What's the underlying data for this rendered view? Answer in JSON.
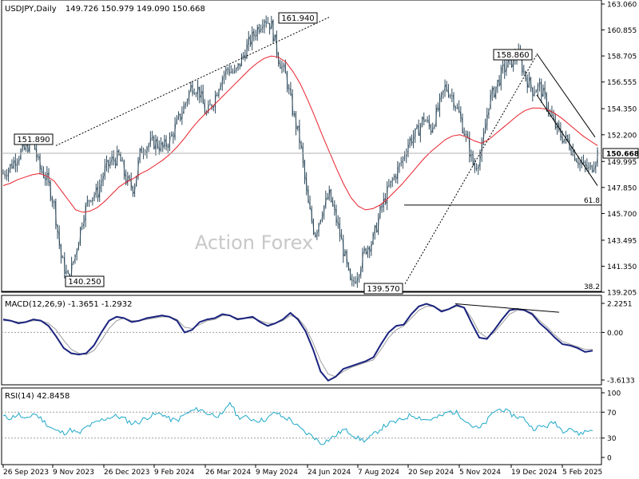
{
  "header": {
    "symbol": "USDJPY,Daily",
    "ohlc": "149.726 150.979 149.090 150.668"
  },
  "watermark": "Action Forex",
  "colors": {
    "candle": "#2e4a5c",
    "ma": "#e8202a",
    "macd": "#1a237e",
    "signal": "#9e9e9e",
    "rsi": "#1fa8c9",
    "axis": "#000000"
  },
  "chart_data": [
    {
      "type": "candlestick",
      "title": "USDJPY,Daily",
      "ylim": [
        139.205,
        163.06
      ],
      "ytick_labels": [
        "163.060",
        "160.855",
        "158.705",
        "156.555",
        "154.350",
        "152.200",
        "149.995",
        "147.850",
        "145.700",
        "143.495",
        "141.350",
        "139.205"
      ],
      "ytick_values": [
        163.06,
        160.855,
        158.705,
        156.555,
        154.35,
        152.2,
        149.995,
        147.85,
        145.7,
        143.495,
        141.35,
        139.205
      ],
      "current_price": "150.668",
      "xtick_labels": [
        "26 Sep 2023",
        "9 Nov 2023",
        "26 Dec 2023",
        "9 Feb 2024",
        "26 Mar 2024",
        "9 May 2024",
        "24 Jun 2024",
        "7 Aug 2024",
        "20 Sep 2024",
        "5 Nov 2024",
        "19 Dec 2024",
        "5 Feb 2025"
      ],
      "close_path": [
        149.0,
        149.6,
        150.5,
        151.0,
        151.89,
        149.5,
        148.6,
        146.5,
        142.0,
        140.25,
        142.5,
        145.5,
        147.2,
        147.4,
        149.3,
        150.1,
        150.4,
        148.4,
        147.8,
        151.0,
        151.4,
        151.6,
        151.1,
        151.8,
        153.2,
        154.6,
        156.3,
        155.9,
        153.8,
        155.0,
        156.8,
        157.7,
        157.2,
        158.6,
        159.9,
        160.9,
        161.94,
        161.2,
        158.5,
        157.0,
        154.0,
        151.5,
        146.6,
        144.0,
        146.0,
        147.2,
        145.1,
        142.5,
        139.57,
        141.0,
        142.8,
        143.5,
        145.8,
        147.5,
        148.8,
        150.0,
        151.7,
        152.3,
        153.6,
        152.7,
        154.3,
        156.2,
        155.4,
        153.7,
        151.7,
        149.4,
        150.8,
        154.9,
        156.2,
        157.6,
        158.2,
        158.86,
        157.1,
        155.9,
        156.2,
        154.8,
        153.1,
        152.1,
        151.6,
        150.4,
        149.6,
        149.3,
        150.67
      ],
      "ma": [
        148.0,
        148.2,
        148.5,
        148.7,
        148.9,
        149.0,
        148.8,
        148.4,
        147.6,
        146.8,
        146.0,
        145.8,
        145.9,
        146.2,
        146.7,
        147.3,
        147.9,
        148.3,
        148.6,
        149.0,
        149.3,
        149.7,
        150.1,
        150.6,
        151.2,
        151.9,
        152.7,
        153.4,
        154.0,
        154.6,
        155.2,
        155.8,
        156.4,
        157.0,
        157.6,
        158.1,
        158.5,
        158.7,
        158.6,
        158.2,
        157.4,
        156.4,
        155.1,
        153.7,
        152.2,
        150.8,
        149.4,
        148.1,
        147.0,
        146.3,
        146.0,
        146.1,
        146.4,
        146.9,
        147.5,
        148.1,
        148.8,
        149.5,
        150.2,
        150.8,
        151.3,
        151.8,
        152.1,
        152.2,
        152.0,
        151.7,
        151.5,
        151.8,
        152.3,
        152.8,
        153.3,
        153.8,
        154.2,
        154.4,
        154.4,
        154.3,
        154.0,
        153.6,
        153.1,
        152.6,
        152.1,
        151.7,
        151.3
      ],
      "annotations": [
        "161.940",
        "158.860",
        "151.890",
        "140.250",
        "139.570",
        "61.8",
        "38.2"
      ],
      "hline": 146.4
    },
    {
      "type": "line",
      "title": "MACD(12,26,9) -1.3651 -1.2932",
      "ytick_labels": [
        "2.2251",
        "0.00",
        "-3.6133"
      ],
      "ylim": [
        -3.9,
        2.6
      ],
      "macd": [
        1.0,
        0.9,
        0.7,
        0.8,
        1.0,
        0.9,
        0.5,
        -0.3,
        -1.2,
        -1.6,
        -1.7,
        -1.6,
        -1.0,
        0.0,
        0.9,
        1.2,
        1.1,
        0.8,
        0.9,
        1.1,
        1.2,
        1.3,
        1.2,
        0.9,
        0.0,
        0.2,
        0.8,
        1.0,
        1.1,
        1.4,
        1.3,
        1.0,
        1.1,
        1.2,
        0.8,
        0.5,
        0.7,
        1.0,
        1.5,
        1.0,
        0.1,
        -1.3,
        -3.0,
        -3.7,
        -3.4,
        -2.8,
        -2.6,
        -2.4,
        -2.2,
        -1.9,
        -0.9,
        0.0,
        0.5,
        0.6,
        1.4,
        2.0,
        2.2,
        2.0,
        1.6,
        1.8,
        2.1,
        1.9,
        0.7,
        -0.4,
        -0.5,
        0.2,
        1.0,
        1.7,
        1.8,
        1.7,
        1.4,
        0.7,
        0.2,
        -0.4,
        -0.9,
        -1.0,
        -1.2,
        -1.5,
        -1.4
      ],
      "signal": [
        0.9,
        0.9,
        0.8,
        0.8,
        0.9,
        0.9,
        0.7,
        0.2,
        -0.6,
        -1.3,
        -1.6,
        -1.7,
        -1.4,
        -0.6,
        0.3,
        0.9,
        1.1,
        0.9,
        0.9,
        1.0,
        1.1,
        1.2,
        1.2,
        1.0,
        0.4,
        0.3,
        0.6,
        0.9,
        1.0,
        1.3,
        1.3,
        1.1,
        1.1,
        1.1,
        0.9,
        0.7,
        0.7,
        0.9,
        1.3,
        1.1,
        0.4,
        -0.8,
        -2.2,
        -3.2,
        -3.4,
        -3.0,
        -2.7,
        -2.5,
        -2.3,
        -2.1,
        -1.3,
        -0.4,
        0.2,
        0.5,
        1.1,
        1.7,
        2.0,
        2.0,
        1.7,
        1.8,
        2.0,
        1.9,
        1.1,
        0.0,
        -0.4,
        0.0,
        0.7,
        1.4,
        1.7,
        1.7,
        1.5,
        0.9,
        0.4,
        -0.2,
        -0.7,
        -0.9,
        -1.1,
        -1.3,
        -1.3
      ]
    },
    {
      "type": "line",
      "title": "RSI(14) 42.8458",
      "ytick_labels": [
        "100",
        "70",
        "30",
        "0"
      ],
      "ylim": [
        0,
        100
      ],
      "values": [
        63,
        61,
        67,
        57,
        69,
        60,
        49,
        41,
        38,
        43,
        36,
        47,
        52,
        58,
        62,
        64,
        60,
        53,
        55,
        62,
        66,
        68,
        59,
        57,
        66,
        72,
        75,
        68,
        66,
        64,
        86,
        63,
        62,
        59,
        57,
        60,
        70,
        62,
        59,
        47,
        38,
        33,
        22,
        27,
        34,
        43,
        38,
        29,
        26,
        35,
        45,
        52,
        55,
        60,
        66,
        62,
        58,
        60,
        64,
        71,
        69,
        60,
        49,
        44,
        56,
        72,
        75,
        68,
        63,
        60,
        45,
        47,
        49,
        55,
        41,
        47,
        36,
        40,
        43
      ]
    }
  ]
}
